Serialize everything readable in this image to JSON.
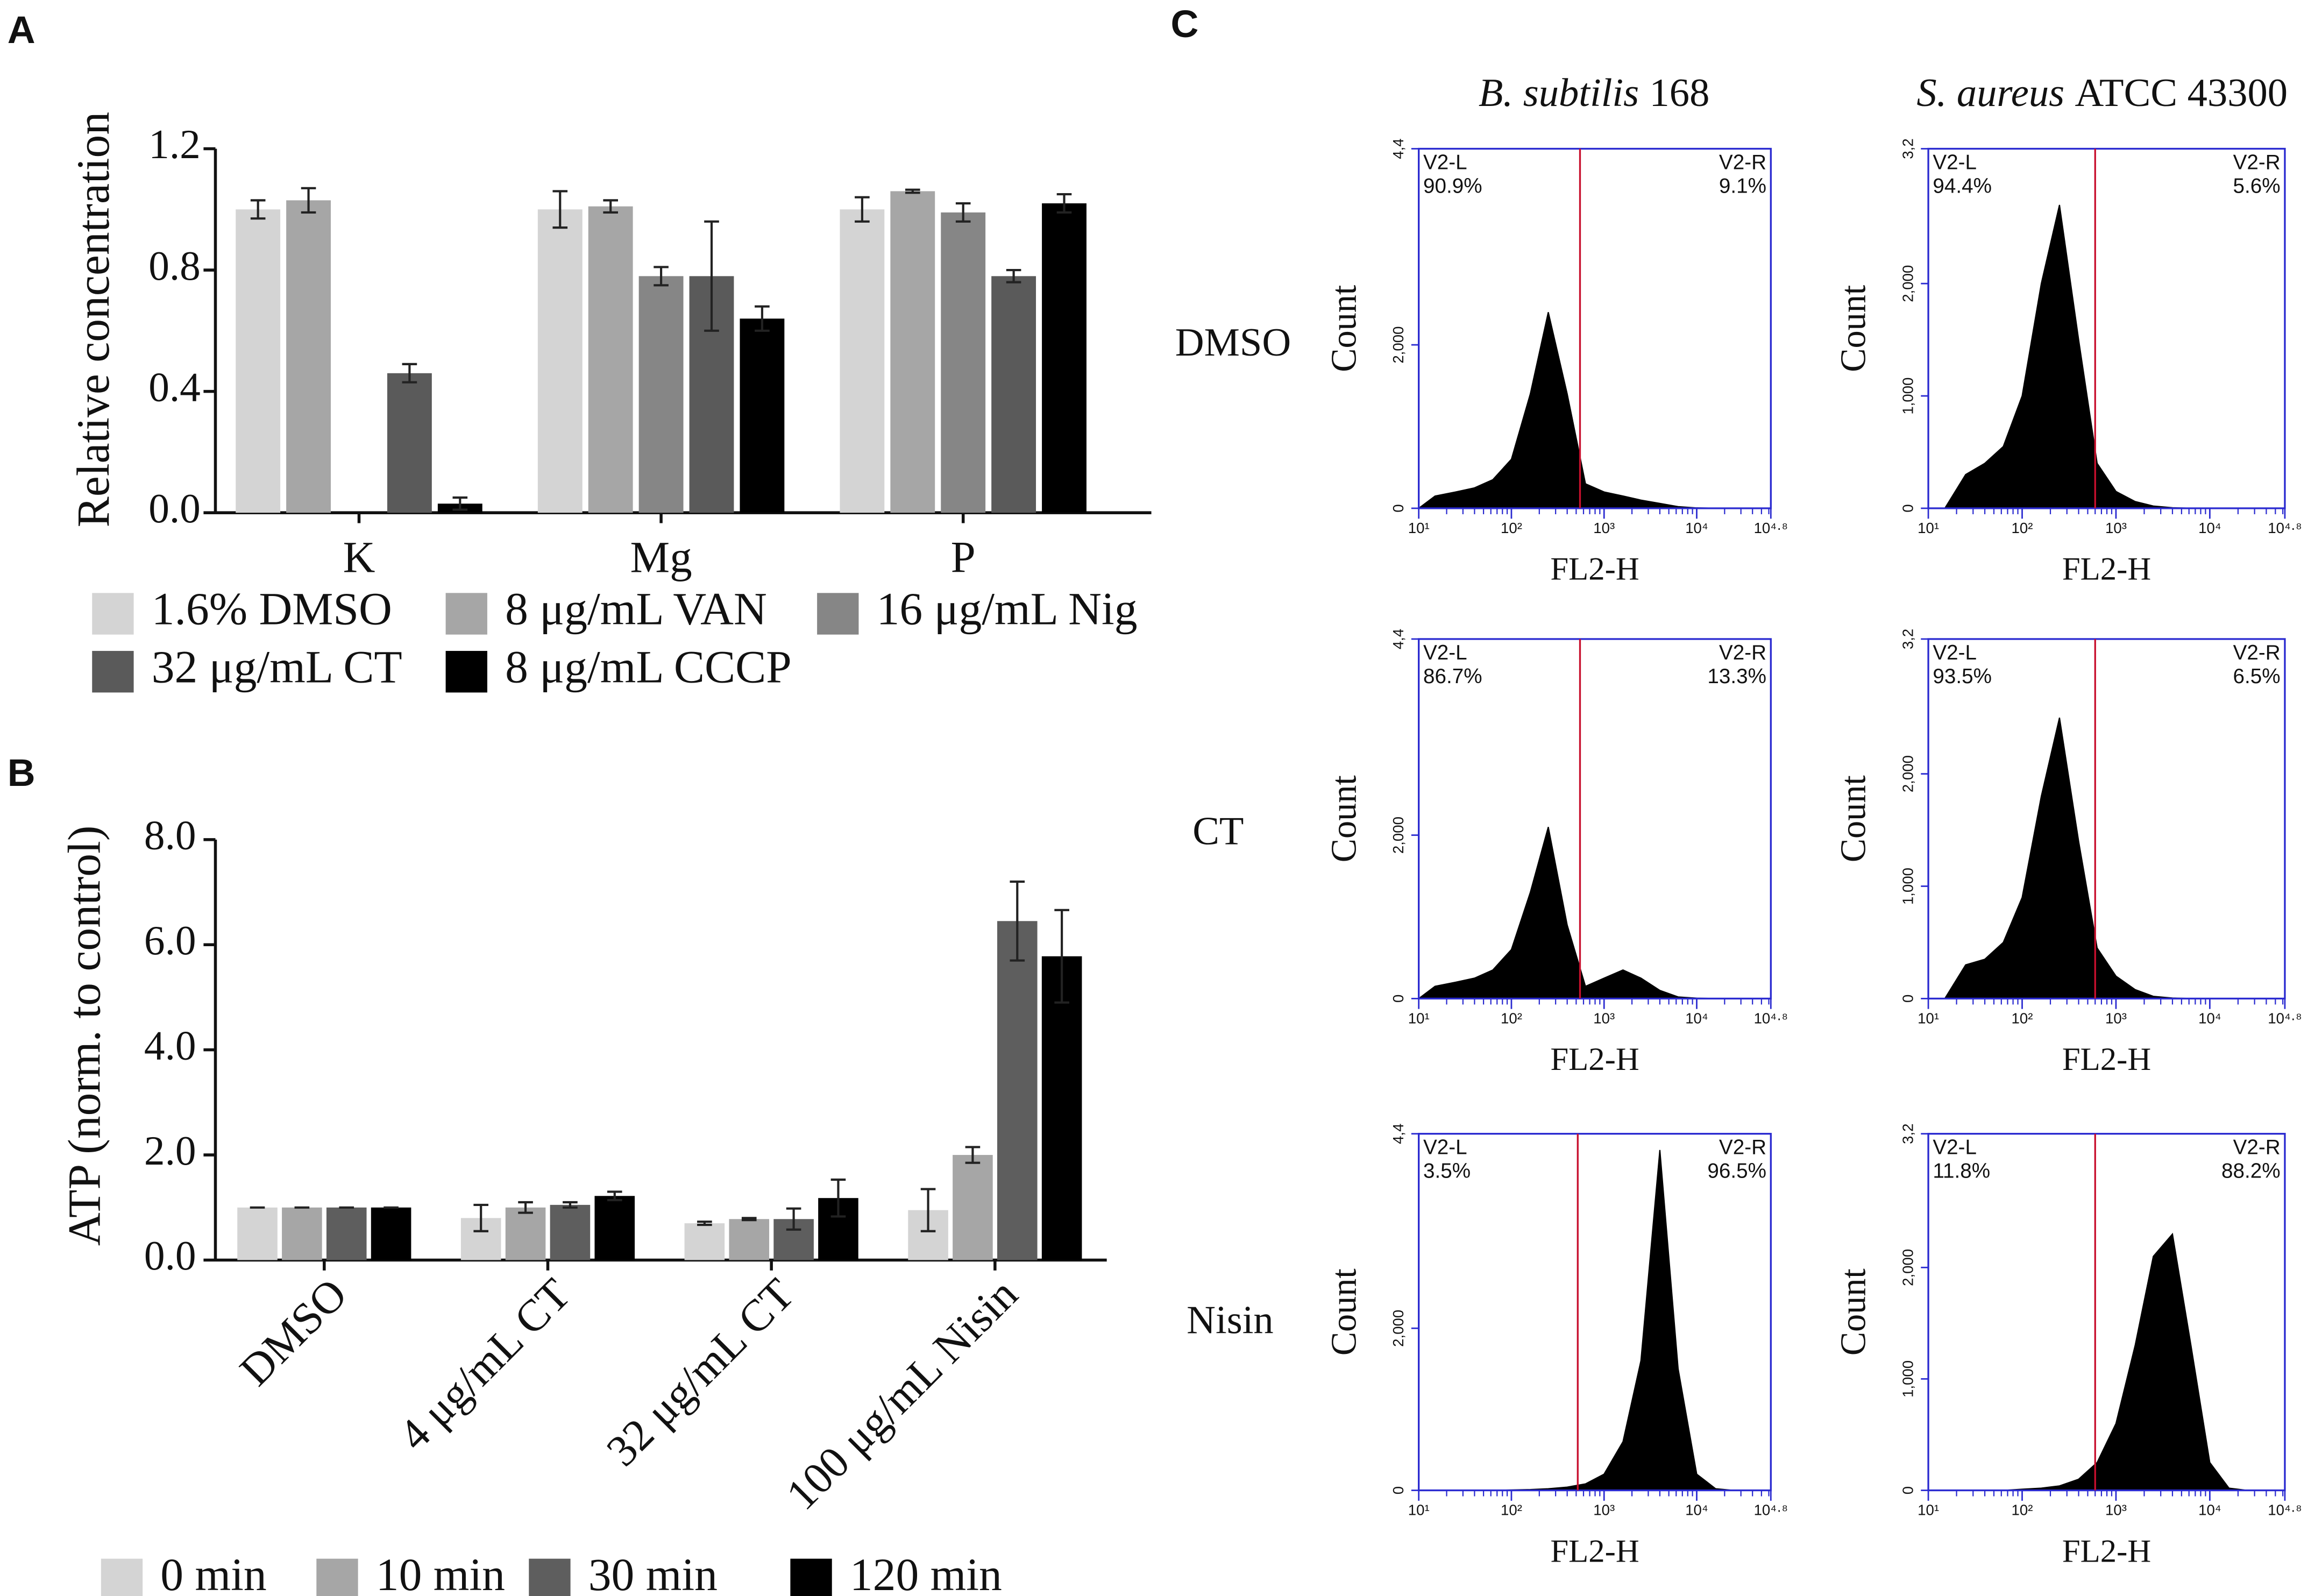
{
  "panel_labels": [
    "A",
    "B",
    "C"
  ],
  "panel_c": {
    "columns": [
      {
        "species": "B. subtilis",
        "strain": "168"
      },
      {
        "species": "S. aureus",
        "strain": "ATCC 43300"
      }
    ],
    "rows": [
      "DMSO",
      "CT",
      "Nisin"
    ]
  },
  "chart_data": [
    {
      "type": "bar",
      "ylabel": "Relative concentration",
      "categories": [
        "K",
        "Mg",
        "P"
      ],
      "series": [
        {
          "name": "1.6% DMSO",
          "color": "#d4d4d4",
          "values": [
            1.0,
            1.0,
            1.0
          ],
          "errors": [
            0.03,
            0.06,
            0.04
          ]
        },
        {
          "name": "8 μg/mL VAN",
          "color": "#a6a6a6",
          "values": [
            1.03,
            1.01,
            1.06
          ],
          "errors": [
            0.04,
            0.02,
            0.005
          ]
        },
        {
          "name": "16 μg/mL Nig",
          "color": "#868686",
          "values": [
            null,
            0.78,
            0.99
          ],
          "errors": [
            null,
            0.03,
            0.03
          ]
        },
        {
          "name": "32 μg/mL CT",
          "color": "#5a5a5a",
          "values": [
            0.46,
            0.78,
            0.78
          ],
          "errors": [
            0.03,
            0.18,
            0.02
          ]
        },
        {
          "name": "8 μg/mL CCCP",
          "color": "#000000",
          "values": [
            0.03,
            0.64,
            1.02
          ],
          "errors": [
            0.02,
            0.04,
            0.03
          ]
        }
      ],
      "ylim": [
        0,
        1.2
      ],
      "yticks": [
        {
          "value": 0,
          "label": "0.0"
        },
        {
          "value": 0.4,
          "label": "0.4"
        },
        {
          "value": 0.8,
          "label": "0.8"
        },
        {
          "value": 1.2,
          "label": "1.2"
        }
      ],
      "legend": "below",
      "category_label_rotation": 0
    },
    {
      "type": "bar",
      "ylabel": "ATP (norm. to control)",
      "categories": [
        "DMSO",
        "4 μg/mL CT",
        "32 μg/mL CT",
        "100 μg/mL Nisin"
      ],
      "series": [
        {
          "name": "0 min",
          "color": "#d4d4d4",
          "values": [
            1.0,
            0.8,
            0.7,
            0.95
          ],
          "errors": [
            0,
            0.25,
            0.03,
            0.4
          ]
        },
        {
          "name": "10 min",
          "color": "#a6a6a6",
          "values": [
            1.0,
            1.0,
            0.78,
            2.0
          ],
          "errors": [
            0,
            0.1,
            0.02,
            0.15
          ]
        },
        {
          "name": "30 min",
          "color": "#5e5e5e",
          "values": [
            1.0,
            1.05,
            0.78,
            6.45
          ],
          "errors": [
            0,
            0.05,
            0.2,
            0.75
          ]
        },
        {
          "name": "120 min",
          "color": "#000000",
          "values": [
            1.0,
            1.22,
            1.18,
            5.78
          ],
          "errors": [
            0,
            0.08,
            0.35,
            0.88
          ]
        }
      ],
      "ylim": [
        0,
        8
      ],
      "yticks": [
        {
          "value": 0,
          "label": "0.0"
        },
        {
          "value": 2,
          "label": "2.0"
        },
        {
          "value": 4,
          "label": "4.0"
        },
        {
          "value": 6,
          "label": "6.0"
        },
        {
          "value": 8,
          "label": "8.0"
        }
      ],
      "legend": "below",
      "category_label_rotation": -45
    },
    {
      "type": "area",
      "xscale": "log",
      "color": "#000000",
      "frame_color": "#2a2ad0",
      "xlabel": "FL2-H",
      "ylabel": "Count",
      "x": [
        10,
        15,
        25,
        40,
        63,
        100,
        160,
        250,
        400,
        630,
        1000,
        1600,
        2500,
        4000,
        6300,
        10000,
        16000,
        25000,
        40000,
        63000
      ],
      "values": [
        0,
        150,
        200,
        250,
        350,
        600,
        1400,
        2400,
        1400,
        300,
        200,
        150,
        100,
        60,
        20,
        5,
        0,
        0,
        0,
        0
      ],
      "xlim": [
        10,
        63096
      ],
      "xticks": [
        {
          "value": 10,
          "label": "10¹"
        },
        {
          "value": 100,
          "label": "10²"
        },
        {
          "value": 1000,
          "label": "10³"
        },
        {
          "value": 10000,
          "label": "10⁴"
        },
        {
          "value": 63096,
          "label": "10⁴·⁸"
        }
      ],
      "ylim": [
        0,
        4400
      ],
      "yticks": [
        0,
        {
          "value": 2000,
          "label": "2,000"
        },
        {
          "value": 4400,
          "label": "4,4"
        }
      ],
      "gate": {
        "x": 550,
        "color": "#c8102e",
        "left_name": "V2-L",
        "left_value": "90.9%",
        "right_name": "V2-R",
        "right_value": "9.1%"
      }
    },
    {
      "type": "area",
      "xscale": "log",
      "color": "#000000",
      "frame_color": "#2a2ad0",
      "xlabel": "FL2-H",
      "ylabel": "Count",
      "x": [
        10,
        15,
        25,
        40,
        63,
        100,
        160,
        250,
        400,
        630,
        1000,
        1600,
        2500,
        4000,
        6300,
        10000,
        16000,
        25000,
        40000,
        63000
      ],
      "values": [
        0,
        0,
        300,
        400,
        550,
        1000,
        2000,
        2700,
        1500,
        400,
        150,
        60,
        20,
        5,
        0,
        0,
        0,
        0,
        0,
        0
      ],
      "xlim": [
        10,
        63096
      ],
      "xticks": [
        {
          "value": 10,
          "label": "10¹"
        },
        {
          "value": 100,
          "label": "10²"
        },
        {
          "value": 1000,
          "label": "10³"
        },
        {
          "value": 10000,
          "label": "10⁴"
        },
        {
          "value": 63096,
          "label": "10⁴·⁸"
        }
      ],
      "ylim": [
        0,
        3200
      ],
      "yticks": [
        0,
        {
          "value": 1000,
          "label": "1,000"
        },
        {
          "value": 2000,
          "label": "2,000"
        },
        {
          "value": 3200,
          "label": "3,2"
        }
      ],
      "gate": {
        "x": 600,
        "color": "#c8102e",
        "left_name": "V2-L",
        "left_value": "94.4%",
        "right_name": "V2-R",
        "right_value": "5.6%"
      }
    },
    {
      "type": "area",
      "xscale": "log",
      "color": "#000000",
      "frame_color": "#2a2ad0",
      "xlabel": "FL2-H",
      "ylabel": "Count",
      "x": [
        10,
        15,
        25,
        40,
        63,
        100,
        160,
        250,
        400,
        630,
        1000,
        1600,
        2500,
        4000,
        6300,
        10000,
        16000,
        25000,
        40000,
        63000
      ],
      "values": [
        0,
        150,
        200,
        250,
        350,
        600,
        1300,
        2100,
        900,
        150,
        250,
        350,
        250,
        100,
        20,
        5,
        0,
        0,
        0,
        0
      ],
      "xlim": [
        10,
        63096
      ],
      "xticks": [
        {
          "value": 10,
          "label": "10¹"
        },
        {
          "value": 100,
          "label": "10²"
        },
        {
          "value": 1000,
          "label": "10³"
        },
        {
          "value": 10000,
          "label": "10⁴"
        },
        {
          "value": 63096,
          "label": "10⁴·⁸"
        }
      ],
      "ylim": [
        0,
        4400
      ],
      "yticks": [
        0,
        {
          "value": 2000,
          "label": "2,000"
        },
        {
          "value": 4400,
          "label": "4,4"
        }
      ],
      "gate": {
        "x": 550,
        "color": "#c8102e",
        "left_name": "V2-L",
        "left_value": "86.7%",
        "right_name": "V2-R",
        "right_value": "13.3%"
      }
    },
    {
      "type": "area",
      "xscale": "log",
      "color": "#000000",
      "frame_color": "#2a2ad0",
      "xlabel": "FL2-H",
      "ylabel": "Count",
      "x": [
        10,
        15,
        25,
        40,
        63,
        100,
        160,
        250,
        400,
        630,
        1000,
        1600,
        2500,
        4000,
        6300,
        10000,
        16000,
        25000,
        40000,
        63000
      ],
      "values": [
        0,
        0,
        300,
        350,
        500,
        900,
        1800,
        2500,
        1400,
        450,
        200,
        80,
        20,
        5,
        0,
        0,
        0,
        0,
        0,
        0
      ],
      "xlim": [
        10,
        63096
      ],
      "xticks": [
        {
          "value": 10,
          "label": "10¹"
        },
        {
          "value": 100,
          "label": "10²"
        },
        {
          "value": 1000,
          "label": "10³"
        },
        {
          "value": 10000,
          "label": "10⁴"
        },
        {
          "value": 63096,
          "label": "10⁴·⁸"
        }
      ],
      "ylim": [
        0,
        3200
      ],
      "yticks": [
        0,
        {
          "value": 1000,
          "label": "1,000"
        },
        {
          "value": 2000,
          "label": "2,000"
        },
        {
          "value": 3200,
          "label": "3,2"
        }
      ],
      "gate": {
        "x": 600,
        "color": "#c8102e",
        "left_name": "V2-L",
        "left_value": "93.5%",
        "right_name": "V2-R",
        "right_value": "6.5%"
      }
    },
    {
      "type": "area",
      "xscale": "log",
      "color": "#000000",
      "frame_color": "#2a2ad0",
      "xlabel": "FL2-H",
      "ylabel": "Count",
      "x": [
        10,
        15,
        25,
        40,
        63,
        100,
        160,
        250,
        400,
        630,
        1000,
        1600,
        2500,
        4000,
        6300,
        10000,
        16000,
        25000,
        40000,
        63000
      ],
      "values": [
        0,
        0,
        0,
        0,
        0,
        5,
        10,
        20,
        40,
        80,
        200,
        600,
        1600,
        4200,
        1500,
        200,
        20,
        0,
        0,
        0
      ],
      "xlim": [
        10,
        63096
      ],
      "xticks": [
        {
          "value": 10,
          "label": "10¹"
        },
        {
          "value": 100,
          "label": "10²"
        },
        {
          "value": 1000,
          "label": "10³"
        },
        {
          "value": 10000,
          "label": "10⁴"
        },
        {
          "value": 63096,
          "label": "10⁴·⁸"
        }
      ],
      "ylim": [
        0,
        4400
      ],
      "yticks": [
        0,
        {
          "value": 2000,
          "label": "2,000"
        },
        {
          "value": 4400,
          "label": "4,4"
        }
      ],
      "gate": {
        "x": 520,
        "color": "#c8102e",
        "left_name": "V2-L",
        "left_value": "3.5%",
        "right_name": "V2-R",
        "right_value": "96.5%"
      }
    },
    {
      "type": "area",
      "xscale": "log",
      "color": "#000000",
      "frame_color": "#2a2ad0",
      "xlabel": "FL2-H",
      "ylabel": "Count",
      "x": [
        10,
        15,
        25,
        40,
        63,
        100,
        160,
        250,
        400,
        630,
        1000,
        1600,
        2500,
        4000,
        6300,
        10000,
        16000,
        25000,
        40000,
        63000
      ],
      "values": [
        0,
        0,
        0,
        0,
        0,
        10,
        20,
        40,
        100,
        250,
        600,
        1300,
        2100,
        2300,
        1300,
        250,
        20,
        0,
        0,
        0
      ],
      "xlim": [
        10,
        63096
      ],
      "xticks": [
        {
          "value": 10,
          "label": "10¹"
        },
        {
          "value": 100,
          "label": "10²"
        },
        {
          "value": 1000,
          "label": "10³"
        },
        {
          "value": 10000,
          "label": "10⁴"
        },
        {
          "value": 63096,
          "label": "10⁴·⁸"
        }
      ],
      "ylim": [
        0,
        3200
      ],
      "yticks": [
        0,
        {
          "value": 1000,
          "label": "1,000"
        },
        {
          "value": 2000,
          "label": "2,000"
        },
        {
          "value": 3200,
          "label": "3,2"
        }
      ],
      "gate": {
        "x": 600,
        "color": "#c8102e",
        "left_name": "V2-L",
        "left_value": "11.8%",
        "right_name": "V2-R",
        "right_value": "88.2%"
      }
    }
  ]
}
